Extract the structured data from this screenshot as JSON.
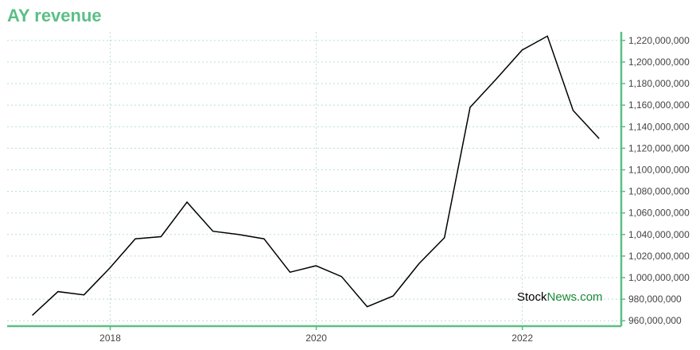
{
  "title": "AY revenue",
  "watermark": {
    "part1": "Stock",
    "part2": "News",
    "part3": ".com"
  },
  "colors": {
    "accent": "#5bbf86",
    "line": "#000000",
    "grid": "#b9e0cc",
    "watermark_dark": "#000000",
    "watermark_green": "#1a8a3a"
  },
  "chart_data": {
    "type": "line",
    "title": "AY revenue",
    "xlabel": "",
    "ylabel": "",
    "xlim": [
      2017.0,
      2022.96
    ],
    "ylim": [
      955000000,
      1228000000
    ],
    "x_ticks": [
      {
        "value": 2018,
        "label": "2018"
      },
      {
        "value": 2020,
        "label": "2020"
      },
      {
        "value": 2022,
        "label": "2022"
      }
    ],
    "y_ticks": [
      {
        "value": 960000000,
        "label": "960,000,000"
      },
      {
        "value": 980000000,
        "label": "980,000,000"
      },
      {
        "value": 1000000000,
        "label": "1,000,000,000"
      },
      {
        "value": 1020000000,
        "label": "1,020,000,000"
      },
      {
        "value": 1040000000,
        "label": "1,040,000,000"
      },
      {
        "value": 1060000000,
        "label": "1,060,000,000"
      },
      {
        "value": 1080000000,
        "label": "1,080,000,000"
      },
      {
        "value": 1100000000,
        "label": "1,100,000,000"
      },
      {
        "value": 1120000000,
        "label": "1,120,000,000"
      },
      {
        "value": 1140000000,
        "label": "1,140,000,000"
      },
      {
        "value": 1160000000,
        "label": "1,160,000,000"
      },
      {
        "value": 1180000000,
        "label": "1,180,000,000"
      },
      {
        "value": 1200000000,
        "label": "1,200,000,000"
      },
      {
        "value": 1220000000,
        "label": "1,220,000,000"
      }
    ],
    "grid": true,
    "series": [
      {
        "x": [
          "2017-03-31",
          "2017-06-30",
          "2017-09-30",
          "2017-12-31",
          "2018-03-31",
          "2018-06-30",
          "2018-09-30",
          "2018-12-31",
          "2019-03-31",
          "2019-06-30",
          "2019-09-30",
          "2019-12-31",
          "2020-03-31",
          "2020-06-30",
          "2020-09-30",
          "2020-12-31",
          "2021-03-31",
          "2021-06-30",
          "2021-09-30",
          "2021-12-31",
          "2022-03-31",
          "2022-06-30",
          "2022-09-30"
        ],
        "values": [
          965000000,
          987000000,
          984000000,
          1009000000,
          1036000000,
          1038000000,
          1070000000,
          1043000000,
          1040000000,
          1036000000,
          1005000000,
          1011000000,
          1001000000,
          973000000,
          983000000,
          1013000000,
          1037000000,
          1158000000,
          1184000000,
          1211000000,
          1224000000,
          1155000000,
          1129000000
        ]
      }
    ]
  }
}
